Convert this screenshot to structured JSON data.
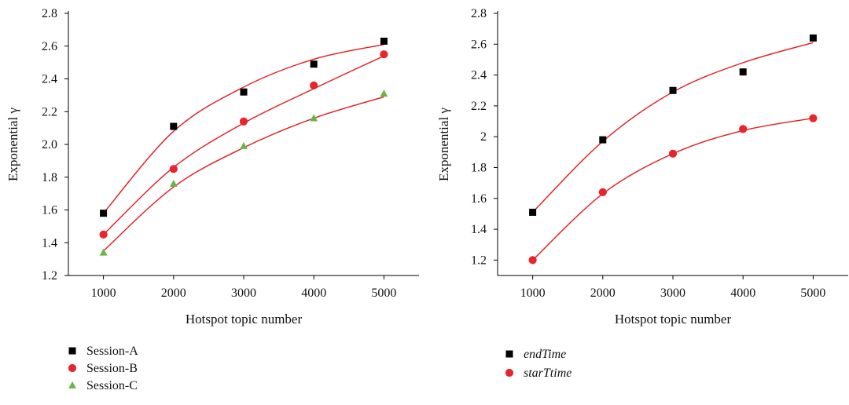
{
  "chart_data": [
    {
      "type": "scatter",
      "xlabel": "Hotspot topic number",
      "ylabel": "Exponential γ",
      "xlim": [
        500,
        5500
      ],
      "ylim": [
        1.2,
        2.8
      ],
      "x_ticks": [
        "1000",
        "2000",
        "3000",
        "4000",
        "5000"
      ],
      "y_ticks": [
        "1.2",
        "1.4",
        "1.6",
        "1.8",
        "2.0",
        "2.2",
        "2.4",
        "2.6",
        "2.8"
      ],
      "x": [
        1000,
        2000,
        3000,
        4000,
        5000
      ],
      "series": [
        {
          "name": "Session-A",
          "marker": "square",
          "color": "#000000",
          "values": [
            1.58,
            2.11,
            2.32,
            2.49,
            2.63
          ],
          "fit": [
            1.58,
            2.08,
            2.35,
            2.52,
            2.61
          ]
        },
        {
          "name": "Session-B",
          "marker": "circle",
          "color": "#e8252a",
          "values": [
            1.45,
            1.85,
            2.14,
            2.36,
            2.55
          ],
          "fit": [
            1.45,
            1.86,
            2.13,
            2.34,
            2.54
          ]
        },
        {
          "name": "Session-C",
          "marker": "triangle",
          "color": "#6ab547",
          "values": [
            1.34,
            1.76,
            1.99,
            2.16,
            2.31
          ],
          "fit": [
            1.35,
            1.74,
            1.98,
            2.16,
            2.29
          ]
        }
      ],
      "fit_color": "#e31a1c",
      "legend_position": "below-left"
    },
    {
      "type": "scatter",
      "xlabel": "Hotspot topic number",
      "ylabel": "Exponential γ",
      "xlim": [
        500,
        5500
      ],
      "ylim": [
        1.1,
        2.8
      ],
      "x_ticks": [
        "1000",
        "2000",
        "3000",
        "4000",
        "5000"
      ],
      "y_ticks": [
        "1.2",
        "1.4",
        "1.6",
        "1.8",
        "2",
        "2.2",
        "2.4",
        "2.6",
        "2.8"
      ],
      "x": [
        1000,
        2000,
        3000,
        4000,
        5000
      ],
      "series": [
        {
          "name": "endTime",
          "marker": "square",
          "color": "#000000",
          "values": [
            1.51,
            1.98,
            2.3,
            2.42,
            2.64
          ],
          "fit": [
            1.51,
            1.97,
            2.29,
            2.48,
            2.61
          ]
        },
        {
          "name": "starTtime",
          "marker": "circle",
          "color": "#e8252a",
          "values": [
            1.2,
            1.64,
            1.89,
            2.05,
            2.12
          ],
          "fit": [
            1.2,
            1.63,
            1.89,
            2.04,
            2.12
          ]
        }
      ],
      "fit_color": "#e31a1c",
      "legend_position": "below-left",
      "legend_italic": true
    }
  ]
}
